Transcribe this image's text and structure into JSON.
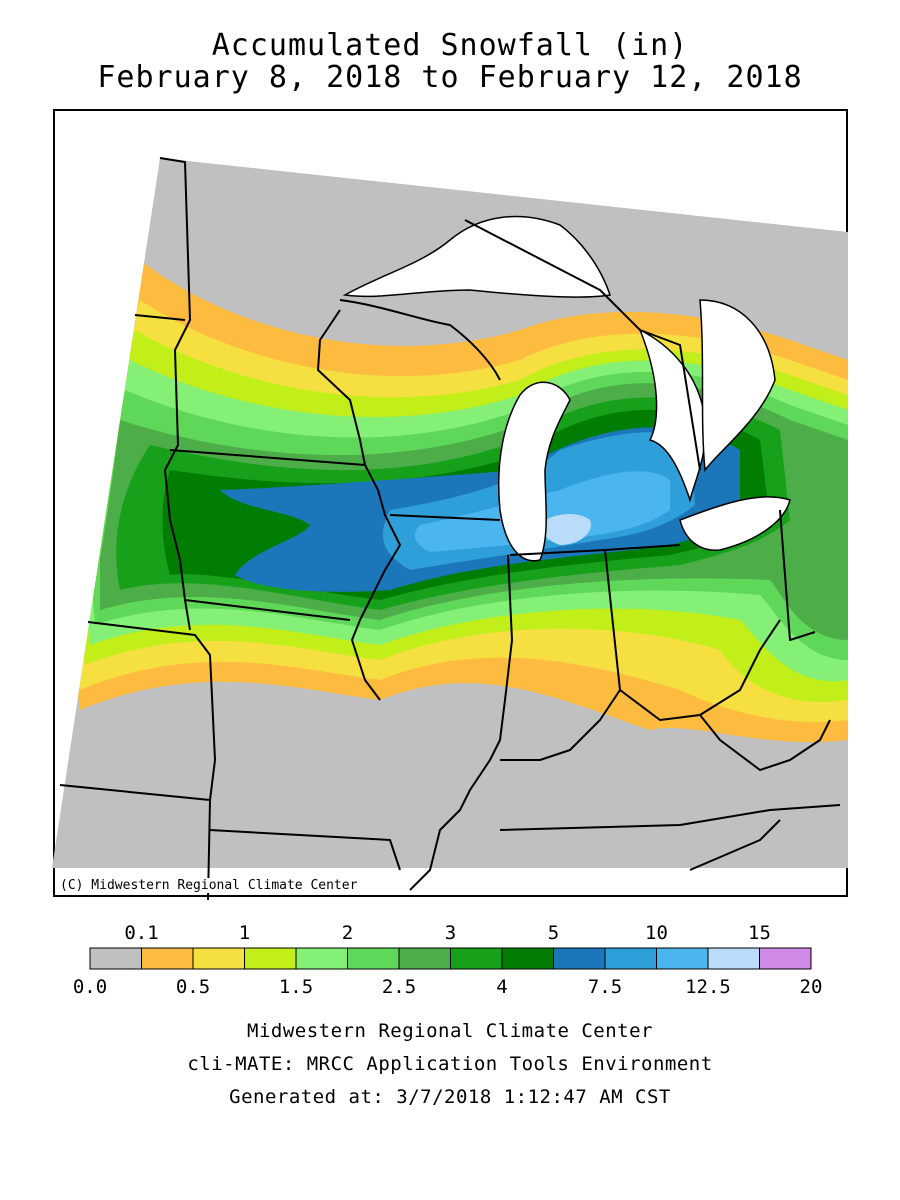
{
  "title_line1": "Accumulated Snowfall (in)",
  "title_line2": "February 8, 2018 to February 12, 2018",
  "copyright": "(C) Midwestern Regional Climate Center",
  "legend": {
    "top_ticks": [
      "0.1",
      "1",
      "2",
      "3",
      "5",
      "10",
      "15"
    ],
    "bottom_ticks": [
      "0.0",
      "0.5",
      "1.5",
      "2.5",
      "4",
      "7.5",
      "12.5",
      "20"
    ],
    "colors": [
      "#c0c0c0",
      "#fdbb3f",
      "#f6e041",
      "#c2ee1a",
      "#84f075",
      "#5fd85a",
      "#4cad49",
      "#17a11a",
      "#017e01",
      "#1b77b9",
      "#2e9fd9",
      "#4ab5ee",
      "#b8dcfa",
      "#cf8ae8"
    ]
  },
  "footer": {
    "line1": "Midwestern Regional Climate Center",
    "line2": "cli-MATE: MRCC Application Tools Environment",
    "line3": "Generated at: 3/7/2018 1:12:47 AM CST"
  }
}
